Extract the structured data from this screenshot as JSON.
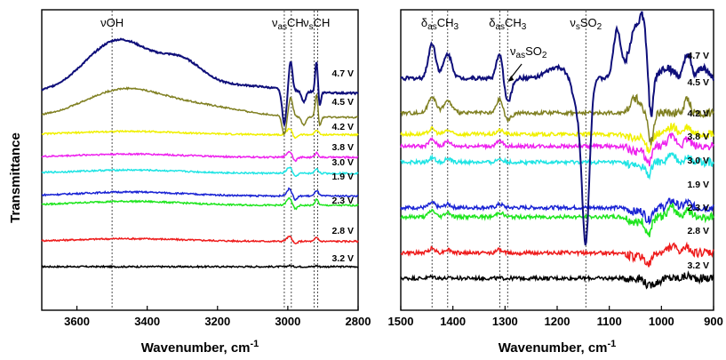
{
  "chart_data": [
    {
      "type": "line",
      "panel": "left",
      "xlabel": "Wavenumber, cm",
      "xlabel_sup": "-1",
      "ylabel": "Transmittance",
      "xlim": [
        3700,
        2800
      ],
      "xticks": [
        3600,
        3400,
        3200,
        3000,
        2800
      ],
      "reference_lines": [
        3500,
        3010,
        2990,
        2925,
        2915
      ],
      "annotations": [
        {
          "text": "νOH",
          "x": 3500
        },
        {
          "text": "ν",
          "sub": "as",
          "after": "CH",
          "x": 3000
        },
        {
          "text": "ν",
          "sub": "s",
          "after": "CH",
          "x": 2918
        }
      ],
      "series": [
        {
          "name": "3.2 V",
          "color": "#000000",
          "baseline": 0.0,
          "shape": "flat",
          "amp": 0.2
        },
        {
          "name": "2.8 V",
          "color": "#ee1c1c",
          "baseline": 0.95,
          "shape": "small",
          "amp": 0.4
        },
        {
          "name": "2.3 V",
          "color": "#1ee51e",
          "baseline": 2.3,
          "shape": "small",
          "amp": 0.6
        },
        {
          "name": "1.9 V",
          "color": "#1a24d4",
          "baseline": 2.65,
          "shape": "small",
          "amp": 0.6
        },
        {
          "name": "3.0 V",
          "color": "#1fe4e4",
          "baseline": 3.5,
          "shape": "small",
          "amp": 0.5
        },
        {
          "name": "3.8 V",
          "color": "#ee22ee",
          "baseline": 4.1,
          "shape": "small",
          "amp": 0.5
        },
        {
          "name": "4.2 V",
          "color": "#f0f000",
          "baseline": 4.95,
          "shape": "small",
          "amp": 0.5
        },
        {
          "name": "4.5 V",
          "color": "#808022",
          "baseline": 5.6,
          "shape": "mid",
          "amp": 1.0
        },
        {
          "name": "4.7 V",
          "color": "#0f0f7a",
          "baseline": 6.5,
          "shape": "big",
          "amp": 1.0
        }
      ]
    },
    {
      "type": "line",
      "panel": "right",
      "xlabel": "Wavenumber, cm",
      "xlabel_sup": "-1",
      "xlim": [
        1500,
        900
      ],
      "xticks": [
        1500,
        1400,
        1300,
        1200,
        1100,
        1000,
        900
      ],
      "reference_lines": [
        1440,
        1410,
        1310,
        1295,
        1145
      ],
      "annotations": [
        {
          "text": "δ",
          "sub": "as",
          "after": "CH",
          "sub2": "3",
          "x": 1425
        },
        {
          "text": "δ",
          "sub": "as",
          "after": "CH",
          "sub2": "3",
          "x": 1295
        },
        {
          "text": "ν",
          "sub": "s",
          "after": "SO",
          "sub2": "2",
          "x": 1145
        },
        {
          "text": "ν",
          "sub": "as",
          "after": "SO",
          "sub2": "2",
          "x": 1255
        }
      ],
      "series": [
        {
          "name": "3.2 V",
          "color": "#000000",
          "baseline": 0.0,
          "shape": "flat",
          "amp": 0.3
        },
        {
          "name": "2.8 V",
          "color": "#ee1c1c",
          "baseline": 0.95,
          "shape": "small",
          "amp": 0.5
        },
        {
          "name": "2.3 V",
          "color": "#1ee51e",
          "baseline": 2.3,
          "shape": "small",
          "amp": 0.7
        },
        {
          "name": "1.9 V",
          "color": "#1a24d4",
          "baseline": 2.65,
          "shape": "small",
          "amp": 0.5
        },
        {
          "name": "3.0 V",
          "color": "#1fe4e4",
          "baseline": 4.35,
          "shape": "small",
          "amp": 0.5
        },
        {
          "name": "3.8 V",
          "color": "#ee22ee",
          "baseline": 4.95,
          "shape": "small",
          "amp": 0.7
        },
        {
          "name": "4.2 V",
          "color": "#f0f000",
          "baseline": 5.4,
          "shape": "small",
          "amp": 0.6
        },
        {
          "name": "4.5 V",
          "color": "#808022",
          "baseline": 6.2,
          "shape": "mid",
          "amp": 0.9
        },
        {
          "name": "4.7 V",
          "color": "#0f0f7a",
          "baseline": 7.5,
          "shape": "big",
          "amp": 1.0
        }
      ],
      "label_order": [
        "4.7 V",
        "4.5 V",
        "4.2 V",
        "3.8 V",
        "3.0 V",
        "1.9 V",
        "2.3 V",
        "2.8 V",
        "3.2 V"
      ]
    }
  ]
}
